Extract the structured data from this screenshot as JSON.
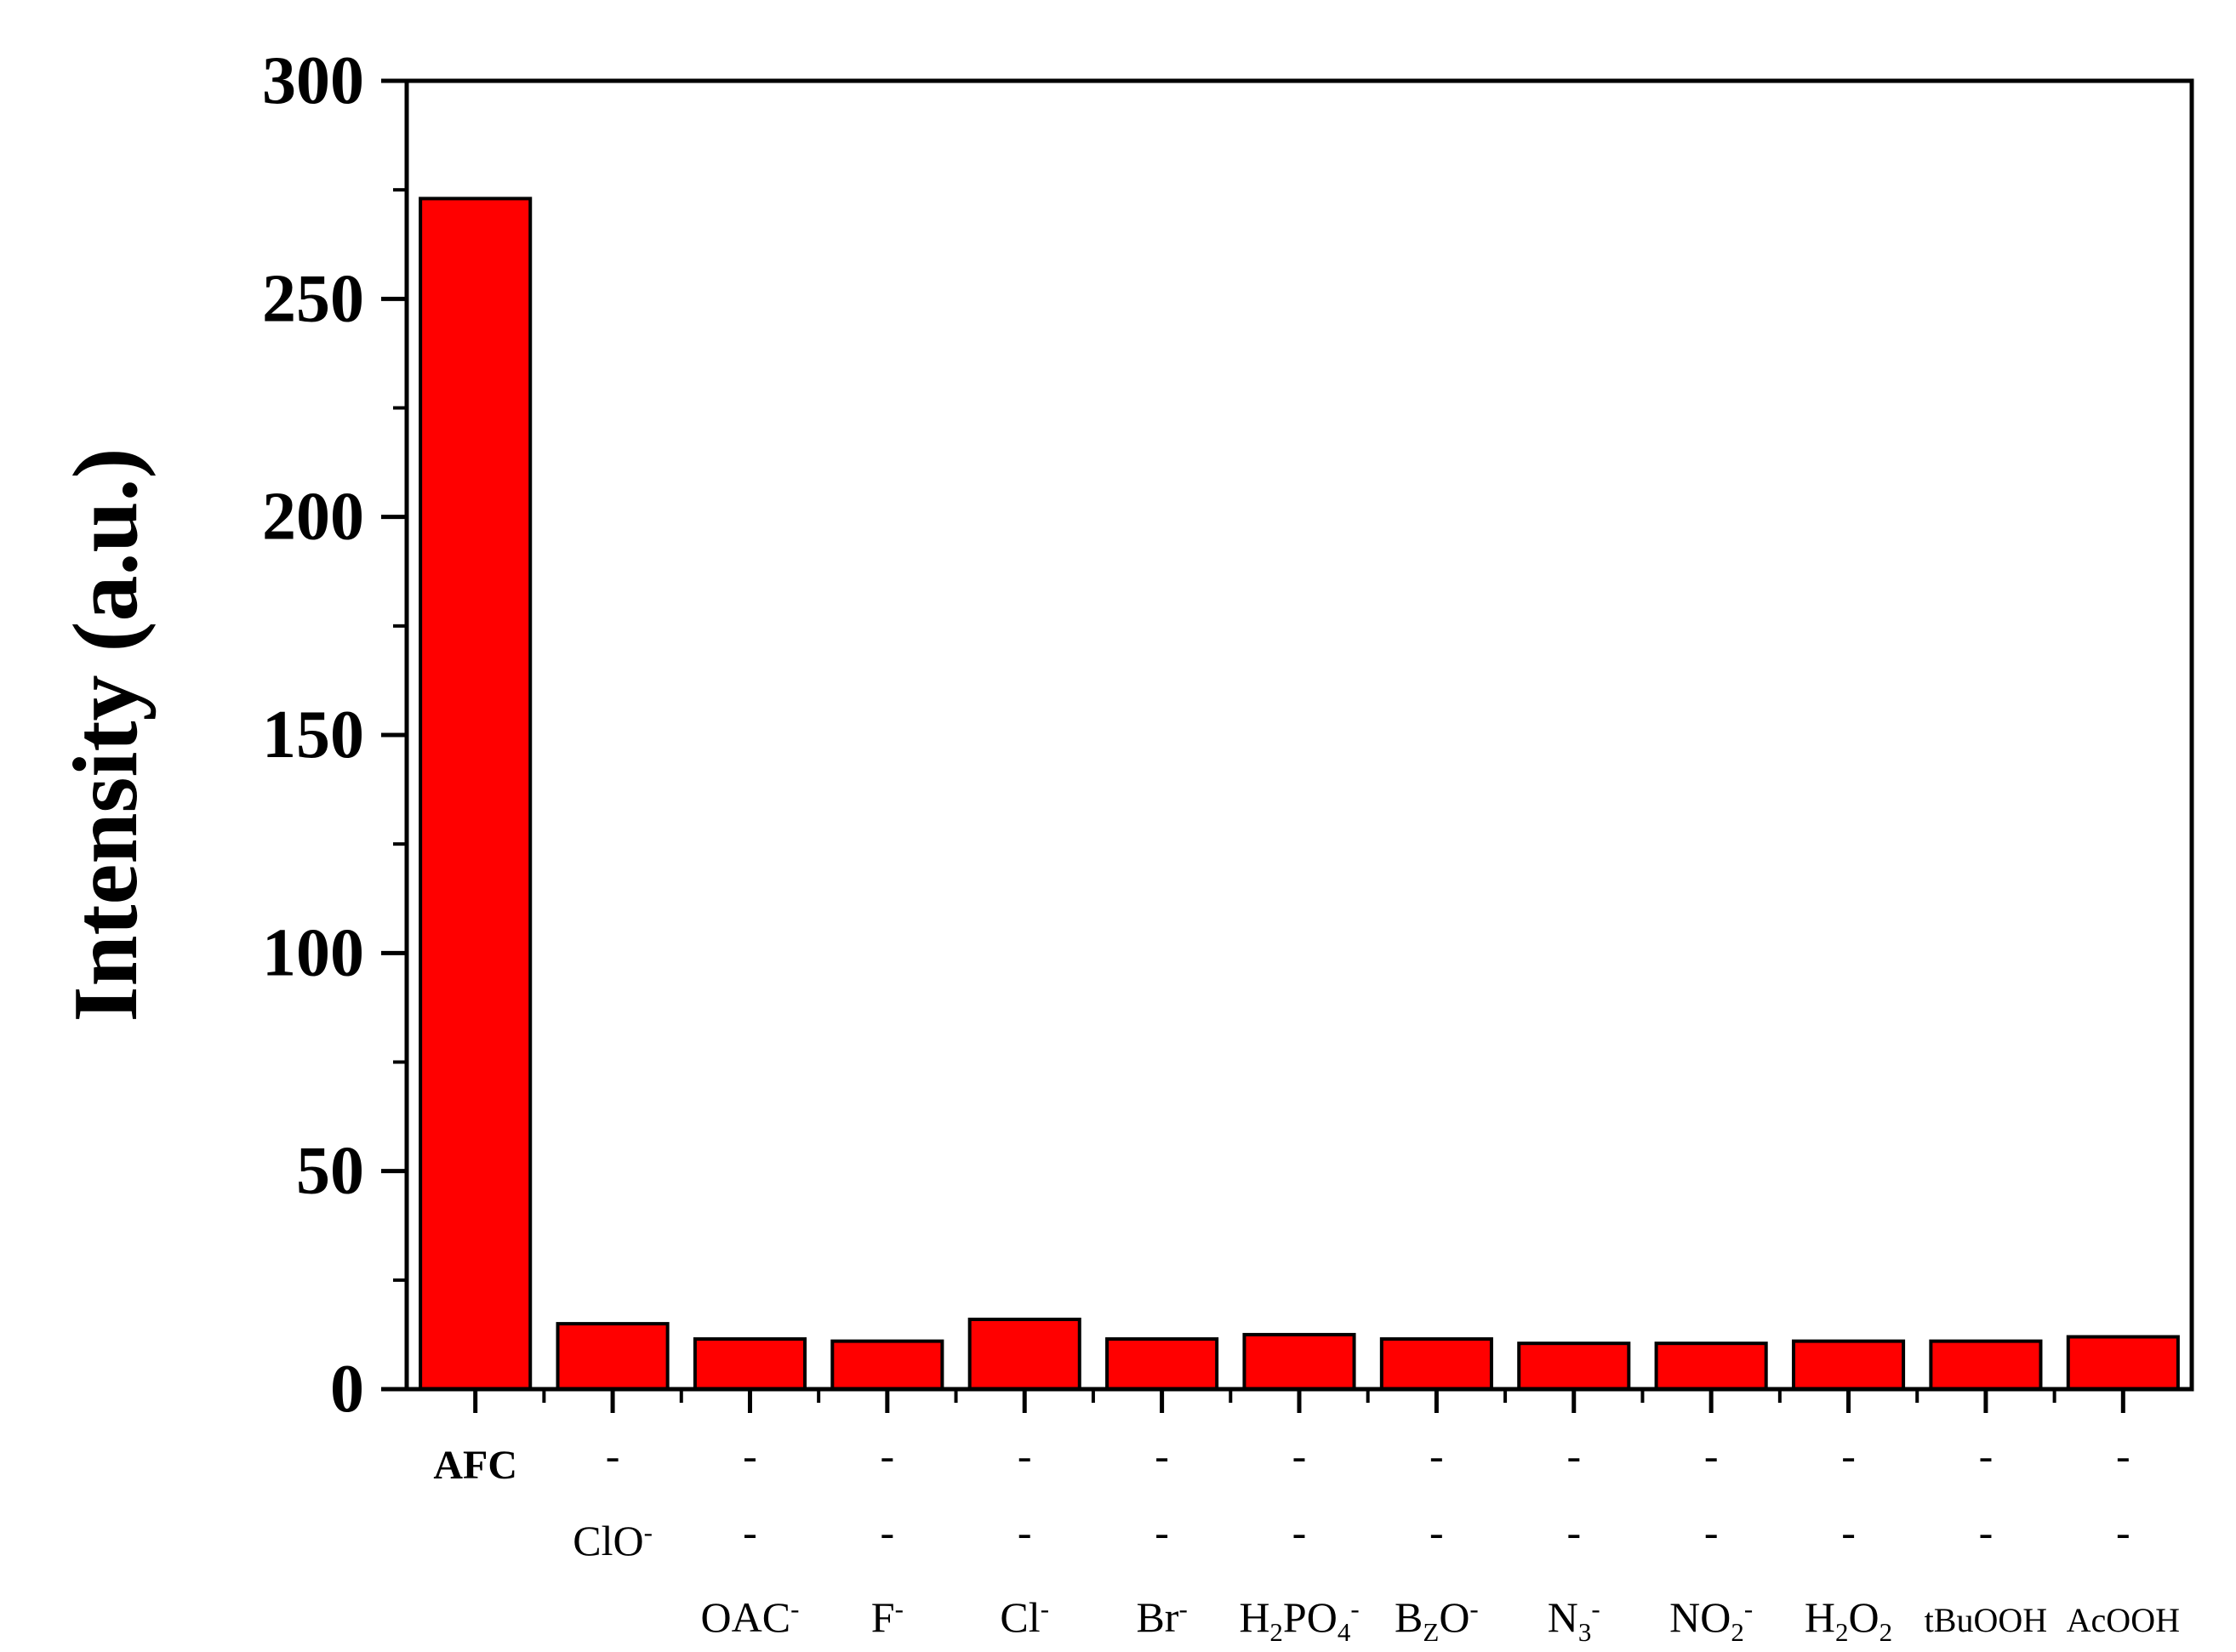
{
  "chart_data": {
    "type": "bar",
    "ylabel": "Intensity (a.u.)",
    "ylim": [
      0,
      300
    ],
    "y_ticks": [
      "0",
      "50",
      "100",
      "150",
      "200",
      "250",
      "300"
    ],
    "grid": false,
    "bar_color": "#ff0000",
    "bar_edge_color": "#000000",
    "categories": [
      "AFC",
      "ClO-",
      "OAC-",
      "F-",
      "Cl-",
      "Br-",
      "H2PO4-",
      "BZO-",
      "N3-",
      "NO2-",
      "H2O2",
      "tBuOOH",
      "AcOOH"
    ],
    "values": [
      273,
      15,
      11.5,
      11,
      16,
      11.5,
      12.5,
      11.5,
      10.5,
      10.5,
      11,
      11,
      12
    ],
    "category_rows": [
      [
        "AFC",
        "-",
        "-",
        "-",
        "-",
        "-",
        "-",
        "-",
        "-",
        "-",
        "-",
        "-",
        "-"
      ],
      [
        "",
        "ClO-",
        "-",
        "-",
        "-",
        "-",
        "-",
        "-",
        "-",
        "-",
        "-",
        "-",
        "-"
      ],
      [
        "",
        "",
        "OAC-",
        "F-",
        "Cl-",
        "Br-",
        "H2PO4-",
        "BZO-",
        "N3-",
        "NO2-",
        "H2O2",
        "tBuOOH",
        "AcOOH"
      ]
    ]
  }
}
